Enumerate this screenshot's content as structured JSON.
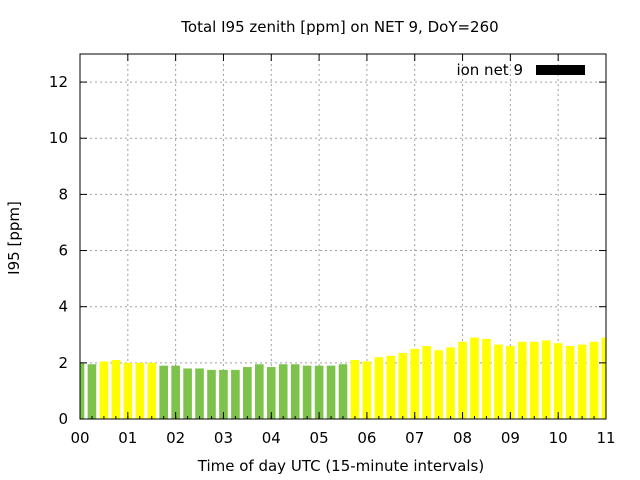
{
  "chart_data": {
    "type": "bar",
    "title": "Total I95 zenith [ppm] on NET 9, DoY=260",
    "xlabel": "Time of day UTC (15-minute intervals)",
    "ylabel": "I95 [ppm]",
    "xlim": [
      0,
      11
    ],
    "ylim": [
      0,
      13
    ],
    "xticks": [
      "00",
      "01",
      "02",
      "03",
      "04",
      "05",
      "06",
      "07",
      "08",
      "09",
      "10",
      "11"
    ],
    "yticks": [
      0,
      2,
      4,
      6,
      8,
      10,
      12
    ],
    "grid": true,
    "legend": {
      "label": "ion net 9",
      "position": "top-right",
      "color": "#000000"
    },
    "interval_hours": 0.25,
    "colors": {
      "green": "#7dc24b",
      "yellow": "#ffff00"
    },
    "series": [
      {
        "x": [
          0,
          0.25,
          0.5,
          0.75,
          1.0,
          1.25,
          1.5,
          1.75,
          2.0,
          2.25,
          2.5,
          2.75,
          3.0,
          3.25,
          3.5,
          3.75,
          4.0,
          4.25,
          4.5,
          4.75,
          5.0,
          5.25,
          5.5,
          5.75,
          6.0,
          6.25,
          6.5,
          6.75,
          7.0,
          7.25,
          7.5,
          7.75,
          8.0,
          8.25,
          8.5,
          8.75,
          9.0,
          9.25,
          9.5,
          9.75,
          10.0,
          10.25,
          10.5,
          10.75,
          11.0
        ],
        "values": [
          2.0,
          1.95,
          2.05,
          2.1,
          2.0,
          2.0,
          2.0,
          1.9,
          1.9,
          1.8,
          1.8,
          1.75,
          1.75,
          1.75,
          1.85,
          1.95,
          1.85,
          1.95,
          1.95,
          1.9,
          1.9,
          1.9,
          1.95,
          2.1,
          2.05,
          2.2,
          2.25,
          2.35,
          2.5,
          2.6,
          2.45,
          2.55,
          2.75,
          2.9,
          2.85,
          2.65,
          2.6,
          2.75,
          2.75,
          2.8,
          2.7,
          2.6,
          2.65,
          2.75,
          2.9
        ],
        "color_keys": [
          "green",
          "green",
          "yellow",
          "yellow",
          "yellow",
          "yellow",
          "yellow",
          "green",
          "green",
          "green",
          "green",
          "green",
          "green",
          "green",
          "green",
          "green",
          "green",
          "green",
          "green",
          "green",
          "green",
          "green",
          "green",
          "yellow",
          "yellow",
          "yellow",
          "yellow",
          "yellow",
          "yellow",
          "yellow",
          "yellow",
          "yellow",
          "yellow",
          "yellow",
          "yellow",
          "yellow",
          "yellow",
          "yellow",
          "yellow",
          "yellow",
          "yellow",
          "yellow",
          "yellow",
          "yellow",
          "yellow"
        ]
      }
    ]
  }
}
